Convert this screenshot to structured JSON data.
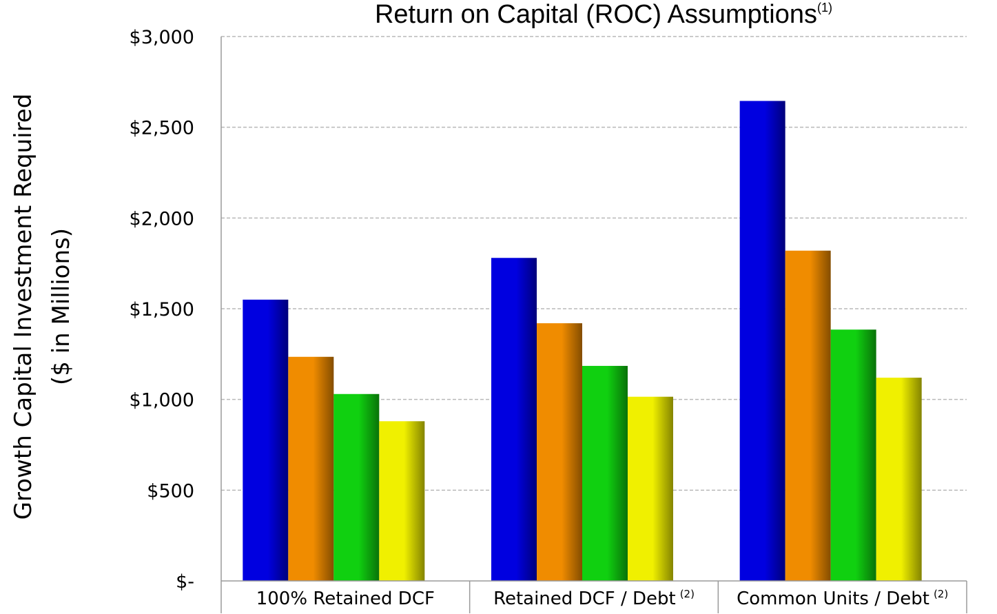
{
  "chart_data": {
    "type": "bar",
    "title": "Return on Capital (ROC) Assumptions",
    "title_superscript": "(1)",
    "ylabel_line1": "Growth Capital Investment Required",
    "ylabel_line2": "($ in Millions)",
    "xlabel": "",
    "ylim": [
      0,
      3000
    ],
    "yticks": [
      0,
      500,
      1000,
      1500,
      2000,
      2500,
      3000
    ],
    "ytick_labels": [
      "$-",
      "$500",
      "$1,000",
      "$1,500",
      "$2,000",
      "$2,500",
      "$3,000"
    ],
    "grid": true,
    "legend": "none",
    "categories": [
      {
        "label": "100% Retained DCF",
        "superscript": ""
      },
      {
        "label": "Retained DCF /  Debt",
        "superscript": "(2)"
      },
      {
        "label": "Common Units / Debt",
        "superscript": "(2)"
      }
    ],
    "series": [
      {
        "color": "#0000e0",
        "values": [
          1550,
          1780,
          2645
        ]
      },
      {
        "color": "#f08c00",
        "values": [
          1235,
          1420,
          1820
        ]
      },
      {
        "color": "#10d010",
        "values": [
          1030,
          1185,
          1385
        ]
      },
      {
        "color": "#f0f000",
        "values": [
          880,
          1015,
          1120
        ]
      }
    ]
  }
}
